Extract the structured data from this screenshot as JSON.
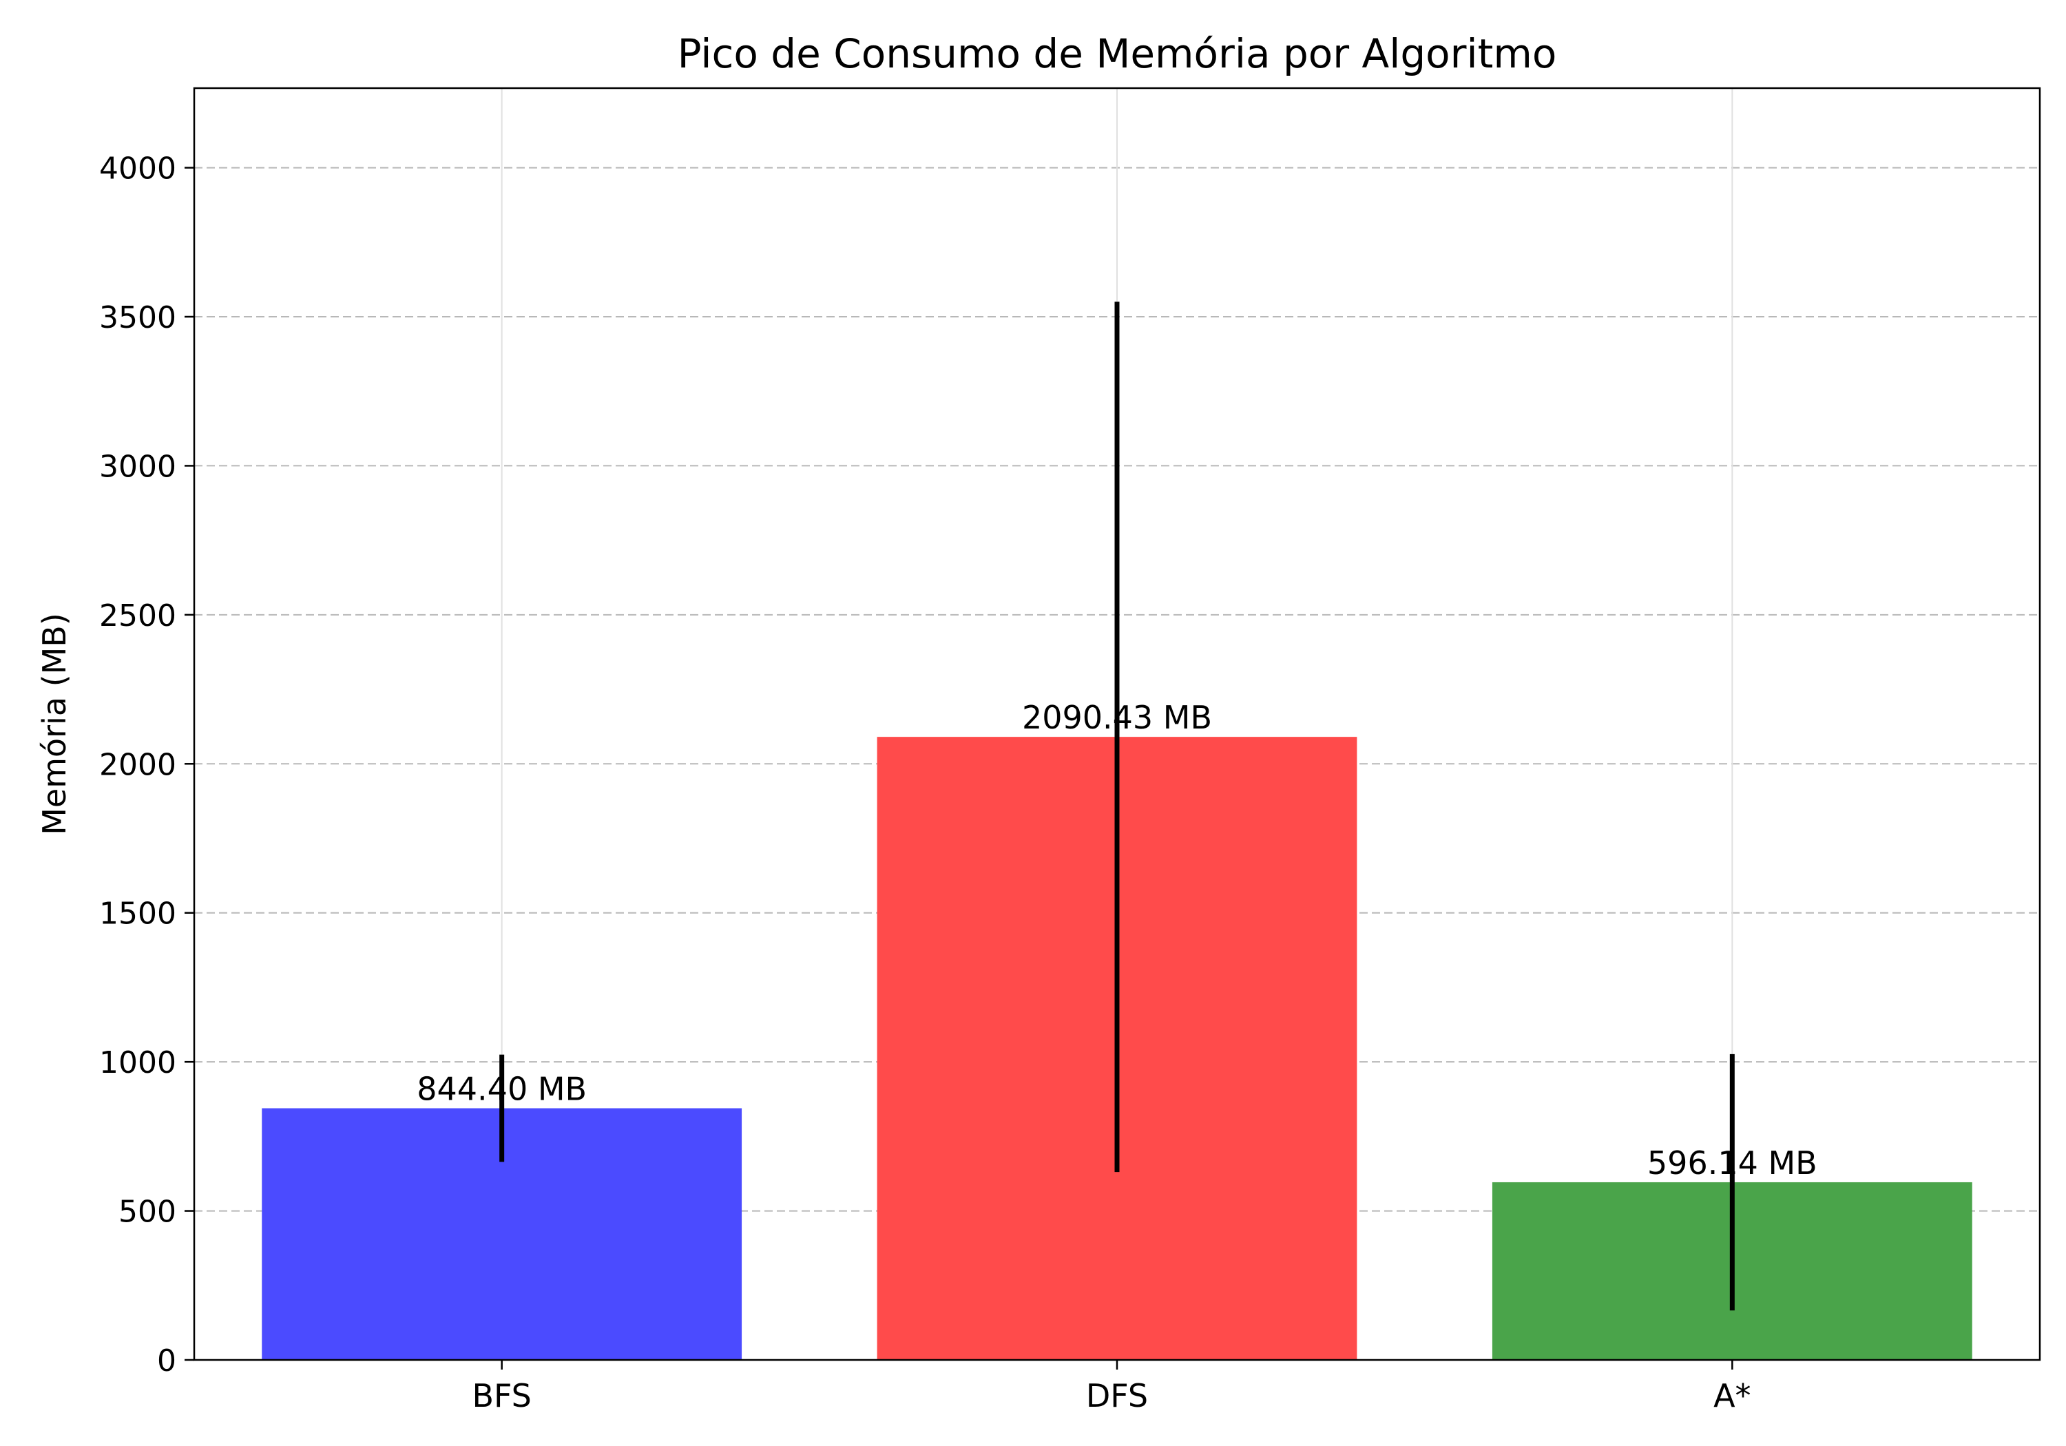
{
  "chart_data": {
    "type": "bar",
    "title": "Pico de Consumo de Memória por Algoritmo",
    "xlabel": "",
    "ylabel": "Memória (MB)",
    "categories": [
      "BFS",
      "DFS",
      "A*"
    ],
    "values": [
      844.4,
      2090.43,
      596.14
    ],
    "error": [
      180,
      1460,
      430
    ],
    "data_labels": [
      "844.40 MB",
      "2090.43 MB",
      "596.14 MB"
    ],
    "colors": [
      "#4b4bff",
      "#ff4b4b",
      "#4aa44a"
    ],
    "ylim": [
      0,
      4267
    ],
    "yticks": [
      0,
      500,
      1000,
      1500,
      2000,
      2500,
      3000,
      3500,
      4000
    ],
    "ytick_labels": [
      "0",
      "500",
      "1000",
      "1500",
      "2000",
      "2500",
      "3000",
      "3500",
      "4000"
    ],
    "grid": "y dashed",
    "legend": "none"
  }
}
